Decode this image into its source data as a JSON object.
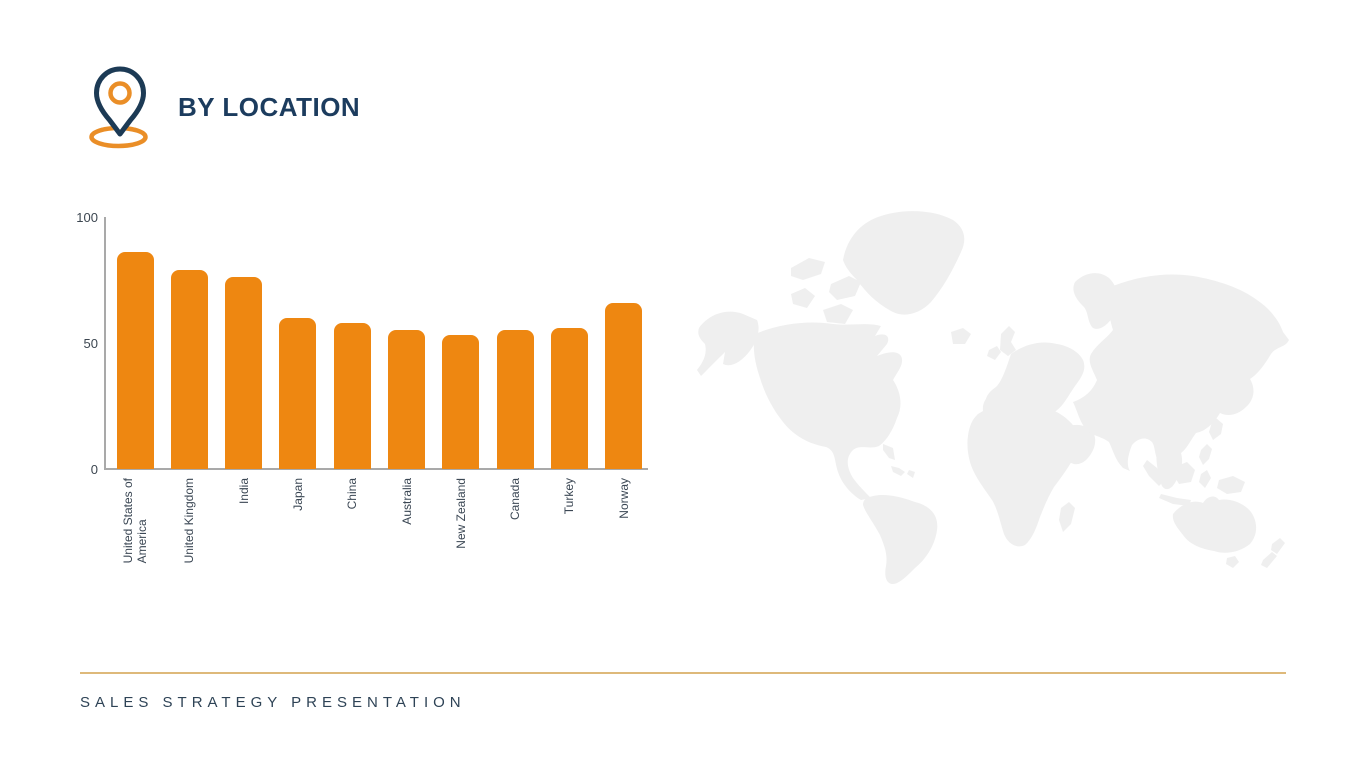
{
  "header": {
    "title": "BY LOCATION",
    "icon": "location-pin"
  },
  "footer": {
    "text": "SALES STRATEGY PRESENTATION"
  },
  "colors": {
    "accent_navy": "#1c3c5e",
    "accent_orange": "#ee8711",
    "icon_orange": "#ea8e27",
    "footer_line_gold": "#deb97a",
    "map_gray": "#efefef",
    "axis_gray": "#a9a9a9"
  },
  "chart_data": {
    "type": "bar",
    "categories": [
      "United States of\nAmerica",
      "United Kingdom",
      "India",
      "Japan",
      "China",
      "Australia",
      "New Zealand",
      "Canada",
      "Turkey",
      "Norway"
    ],
    "values": [
      86,
      79,
      76,
      60,
      58,
      55,
      53,
      55,
      56,
      66
    ],
    "title": "",
    "xlabel": "",
    "ylabel": "",
    "ylim": [
      0,
      100
    ],
    "yticks": [
      0,
      50,
      100
    ],
    "bar_color": "#ee8711",
    "grid": false,
    "legend": false,
    "x_tick_rotation": -90
  }
}
